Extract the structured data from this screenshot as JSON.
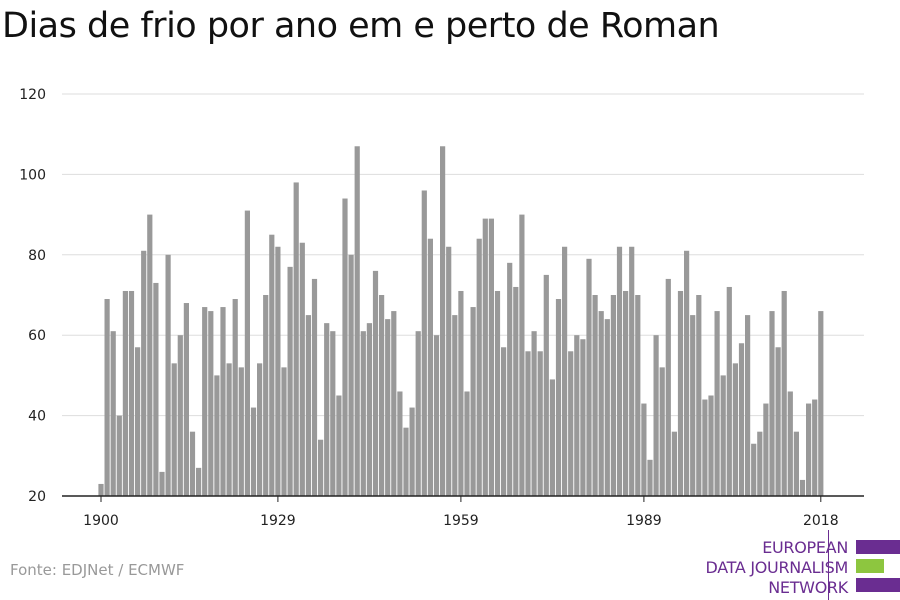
{
  "title": "Dias de frio por ano em e perto de Roman",
  "source": "Fonte: EDJNet / ECMWF",
  "logo": {
    "line1": "EUROPEAN",
    "line2": "DATA JOURNALISM",
    "line3": "NETWORK",
    "colors": {
      "purple": "#6a2d91",
      "green": "#8dc63f"
    }
  },
  "colors": {
    "bar": "#999999",
    "grid": "#dddddd",
    "axis": "#222222"
  },
  "chart_data": {
    "type": "bar",
    "title": "Dias de frio por ano em e perto de Roman",
    "xlabel": "",
    "ylabel": "",
    "x_start": 1900,
    "x_end": 2018,
    "x_ticks": [
      "1900",
      "1929",
      "1959",
      "1989",
      "2018"
    ],
    "y_ticks": [
      "20",
      "40",
      "60",
      "80",
      "100",
      "120"
    ],
    "ylim": [
      20,
      120
    ],
    "grid": true,
    "values": [
      23,
      69,
      61,
      40,
      71,
      71,
      57,
      81,
      90,
      73,
      26,
      80,
      53,
      60,
      68,
      36,
      27,
      67,
      66,
      50,
      67,
      53,
      69,
      52,
      91,
      42,
      53,
      70,
      85,
      82,
      52,
      77,
      98,
      83,
      65,
      74,
      34,
      63,
      61,
      45,
      94,
      80,
      107,
      61,
      63,
      76,
      70,
      64,
      66,
      46,
      37,
      42,
      61,
      96,
      84,
      60,
      107,
      82,
      65,
      71,
      46,
      67,
      84,
      89,
      89,
      71,
      57,
      78,
      72,
      90,
      56,
      61,
      56,
      75,
      49,
      69,
      82,
      56,
      60,
      59,
      79,
      70,
      66,
      64,
      70,
      82,
      71,
      82,
      70,
      43,
      29,
      60,
      52,
      74,
      36,
      71,
      81,
      65,
      70,
      44,
      45,
      66,
      50,
      72,
      53,
      58,
      65,
      33,
      36,
      43,
      66,
      57,
      71,
      46,
      36,
      24,
      43,
      44,
      66
    ]
  }
}
